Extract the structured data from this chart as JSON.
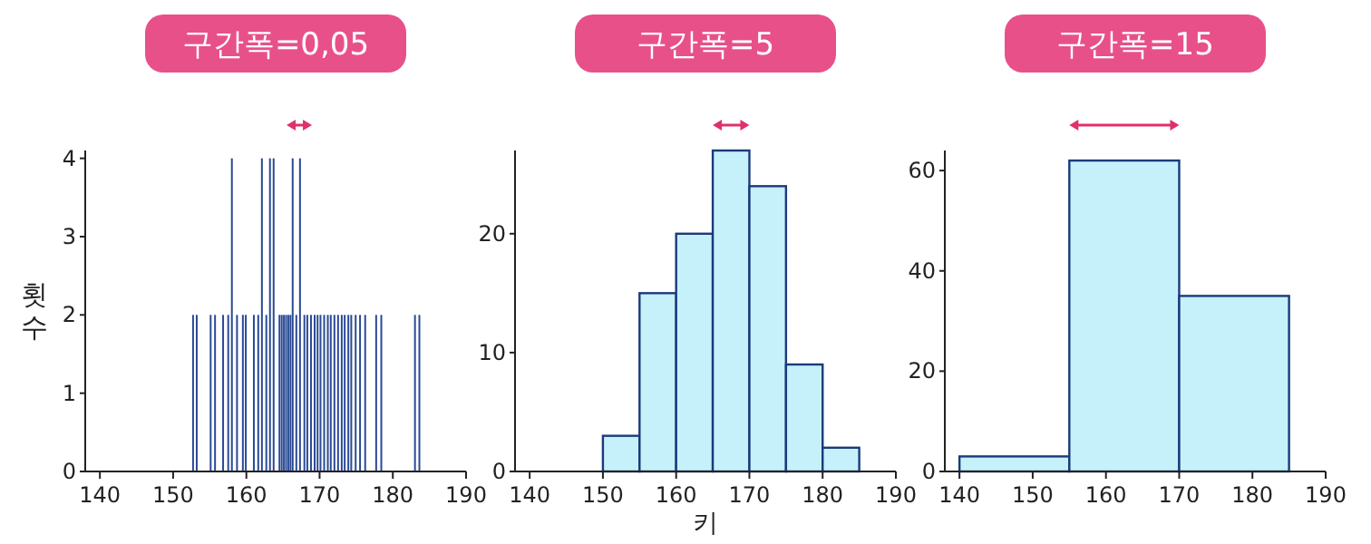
{
  "chart_data": [
    {
      "type": "histogram",
      "title": "구간폭=0,05",
      "ylabel": "횟수",
      "color": "#2b4a94",
      "bins": [
        152.6,
        152.65,
        153.1,
        153.15,
        155,
        155.05,
        155.6,
        155.65,
        156.7,
        156.75,
        157.4,
        157.45,
        157.9,
        157.95,
        158.6,
        158.65,
        159.4,
        159.45,
        159.8,
        159.85,
        160.9,
        160.95,
        161.5,
        161.55,
        162,
        162.05,
        162.6,
        162.65,
        163.1,
        163.15,
        163.6,
        163.65,
        164.4,
        164.45,
        164.7,
        164.75,
        165,
        165.05,
        165.3,
        165.35,
        165.6,
        165.65,
        165.9,
        165.95,
        166.2,
        166.25,
        166.7,
        166.75,
        167.2,
        167.25,
        167.8,
        167.85,
        168.2,
        168.25,
        168.7,
        168.75,
        169.2,
        169.25,
        169.6,
        169.65,
        170,
        170.05,
        170.5,
        170.55,
        171,
        171.05,
        171.4,
        171.45,
        171.9,
        171.95,
        172.4,
        172.45,
        172.9,
        172.95,
        173.3,
        173.35,
        173.8,
        173.85,
        174.2,
        174.25,
        174.8,
        174.85,
        175.4,
        175.45,
        176.1,
        176.15,
        177.6,
        177.65,
        178.3,
        178.35,
        182.9,
        182.95,
        183.5,
        183.55
      ],
      "values": [
        2,
        0,
        2,
        0,
        2,
        0,
        2,
        0,
        2,
        0,
        2,
        0,
        4,
        0,
        2,
        0,
        2,
        0,
        2,
        0,
        2,
        0,
        2,
        0,
        4,
        0,
        2,
        0,
        4,
        0,
        4,
        0,
        2,
        0,
        2,
        0,
        2,
        0,
        2,
        0,
        2,
        0,
        2,
        0,
        4,
        0,
        2,
        0,
        4,
        0,
        2,
        0,
        2,
        0,
        2,
        0,
        2,
        0,
        2,
        0,
        2,
        0,
        2,
        0,
        2,
        0,
        2,
        0,
        2,
        0,
        2,
        0,
        2,
        0,
        2,
        0,
        2,
        0,
        2,
        0,
        2,
        0,
        2,
        0,
        2,
        0,
        2,
        0,
        2,
        0,
        2,
        0,
        2
      ],
      "xlim": [
        138,
        190
      ],
      "xticks": [
        140,
        150,
        160,
        170,
        180,
        190
      ],
      "ylim": [
        0,
        4.1
      ],
      "yticks": [
        0,
        1,
        2,
        3,
        4
      ]
    },
    {
      "type": "histogram",
      "title": "구간폭=5",
      "xlabel": "키",
      "color": "#c6f1fb",
      "bins": [
        150,
        155,
        160,
        165,
        170,
        175,
        180,
        185
      ],
      "values": [
        3,
        15,
        20,
        27,
        24,
        9,
        2
      ],
      "xlim": [
        138,
        190
      ],
      "xticks": [
        140,
        150,
        160,
        170,
        180,
        190
      ],
      "ylim": [
        0,
        27
      ],
      "yticks": [
        0,
        10,
        20
      ]
    },
    {
      "type": "histogram",
      "title": "구간폭=15",
      "color": "#c6f1fb",
      "bins": [
        140,
        155,
        170,
        185
      ],
      "values": [
        3,
        62,
        35
      ],
      "xlim": [
        138,
        190
      ],
      "xticks": [
        140,
        150,
        160,
        170,
        180,
        190
      ],
      "ylim": [
        0,
        64
      ],
      "yticks": [
        0,
        20,
        40,
        60
      ]
    }
  ]
}
